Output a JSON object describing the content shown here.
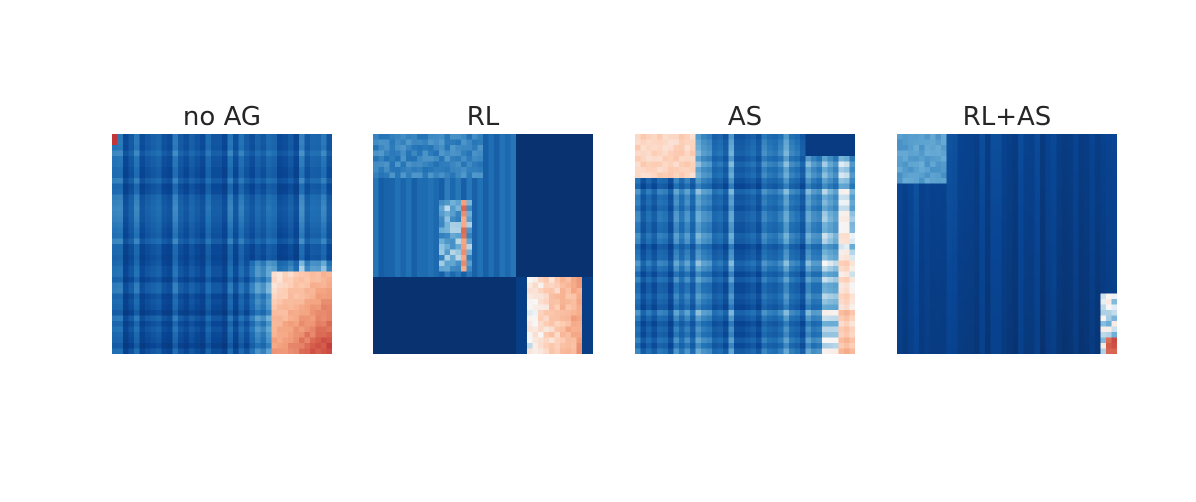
{
  "figure": {
    "panels": [
      {
        "title": "no AG"
      },
      {
        "title": "RL"
      },
      {
        "title": "AS"
      },
      {
        "title": "RL+AS"
      }
    ]
  },
  "colors": {
    "colormap": "RdBu_r",
    "low": "#08306b",
    "mid": "#f7f7f7",
    "high": "#b2182b"
  },
  "chart_data": [
    {
      "type": "heatmap",
      "title": "no AG",
      "colormap": "RdBu_r",
      "grid": false,
      "axes": "off",
      "description_rows": 40,
      "description_cols": 40,
      "pattern": "mostly blue with vertical streaks, light region toward bottom-right corner"
    },
    {
      "type": "heatmap",
      "title": "RL",
      "colormap": "RdBu_r",
      "grid": false,
      "axes": "off",
      "description_rows": 40,
      "description_cols": 40,
      "pattern": "two-block structure, dark off-diagonal blocks, light/red patches in middle and bottom-right"
    },
    {
      "type": "heatmap",
      "title": "AS",
      "colormap": "RdBu_r",
      "grid": false,
      "axes": "off",
      "description_rows": 40,
      "description_cols": 40,
      "pattern": "light/red top-left block, banded middle, red bottom-right column"
    },
    {
      "type": "heatmap",
      "title": "RL+AS",
      "colormap": "RdBu_r",
      "grid": false,
      "axes": "off",
      "description_rows": 40,
      "description_cols": 40,
      "pattern": "mostly dark blue, lighter top-left, small light/red bottom-right corner"
    }
  ]
}
